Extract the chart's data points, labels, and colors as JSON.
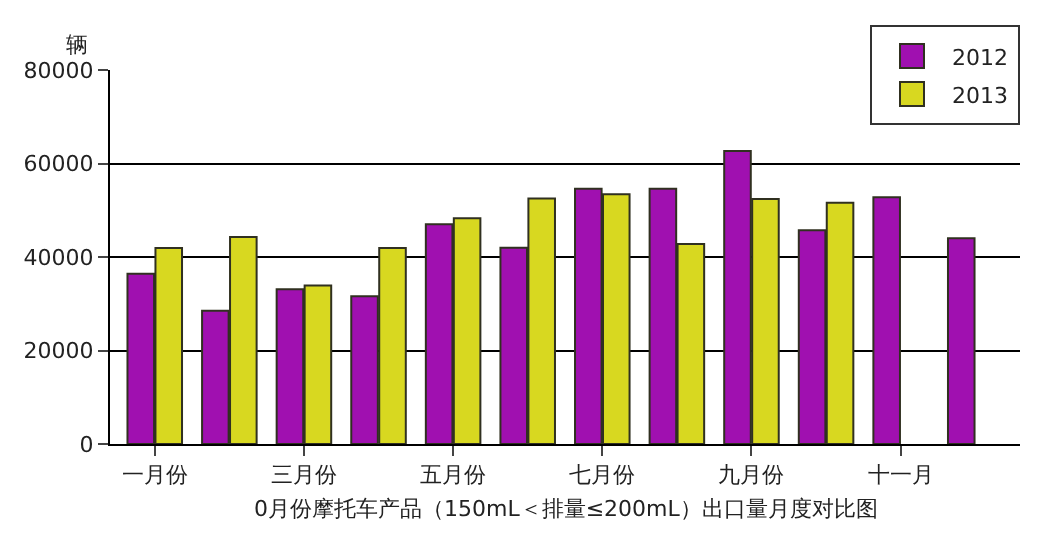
{
  "chart_data": {
    "type": "bar",
    "ylabel": "辆",
    "categories": [
      "一月份",
      null,
      "三月份",
      null,
      "五月份",
      null,
      "七月份",
      null,
      "九月份",
      null,
      "十一月",
      null
    ],
    "series": [
      {
        "name": "2012",
        "color": "#a010b0",
        "values": [
          36400,
          28500,
          33100,
          31600,
          47000,
          42000,
          54600,
          54600,
          62700,
          45700,
          52800,
          44000
        ]
      },
      {
        "name": "2013",
        "color": "#d8d820",
        "values": [
          41900,
          44300,
          33900,
          41900,
          48300,
          52500,
          53400,
          42800,
          52400,
          51600,
          null,
          null
        ]
      }
    ],
    "ylim": [
      0,
      80000
    ],
    "yticks": [
      0,
      20000,
      40000,
      60000,
      80000
    ],
    "grid": "y",
    "legend": "top right",
    "annotations": [
      "0月份摩托车产品（150mL＜排量≤200mL）出口量月度对比图"
    ]
  }
}
